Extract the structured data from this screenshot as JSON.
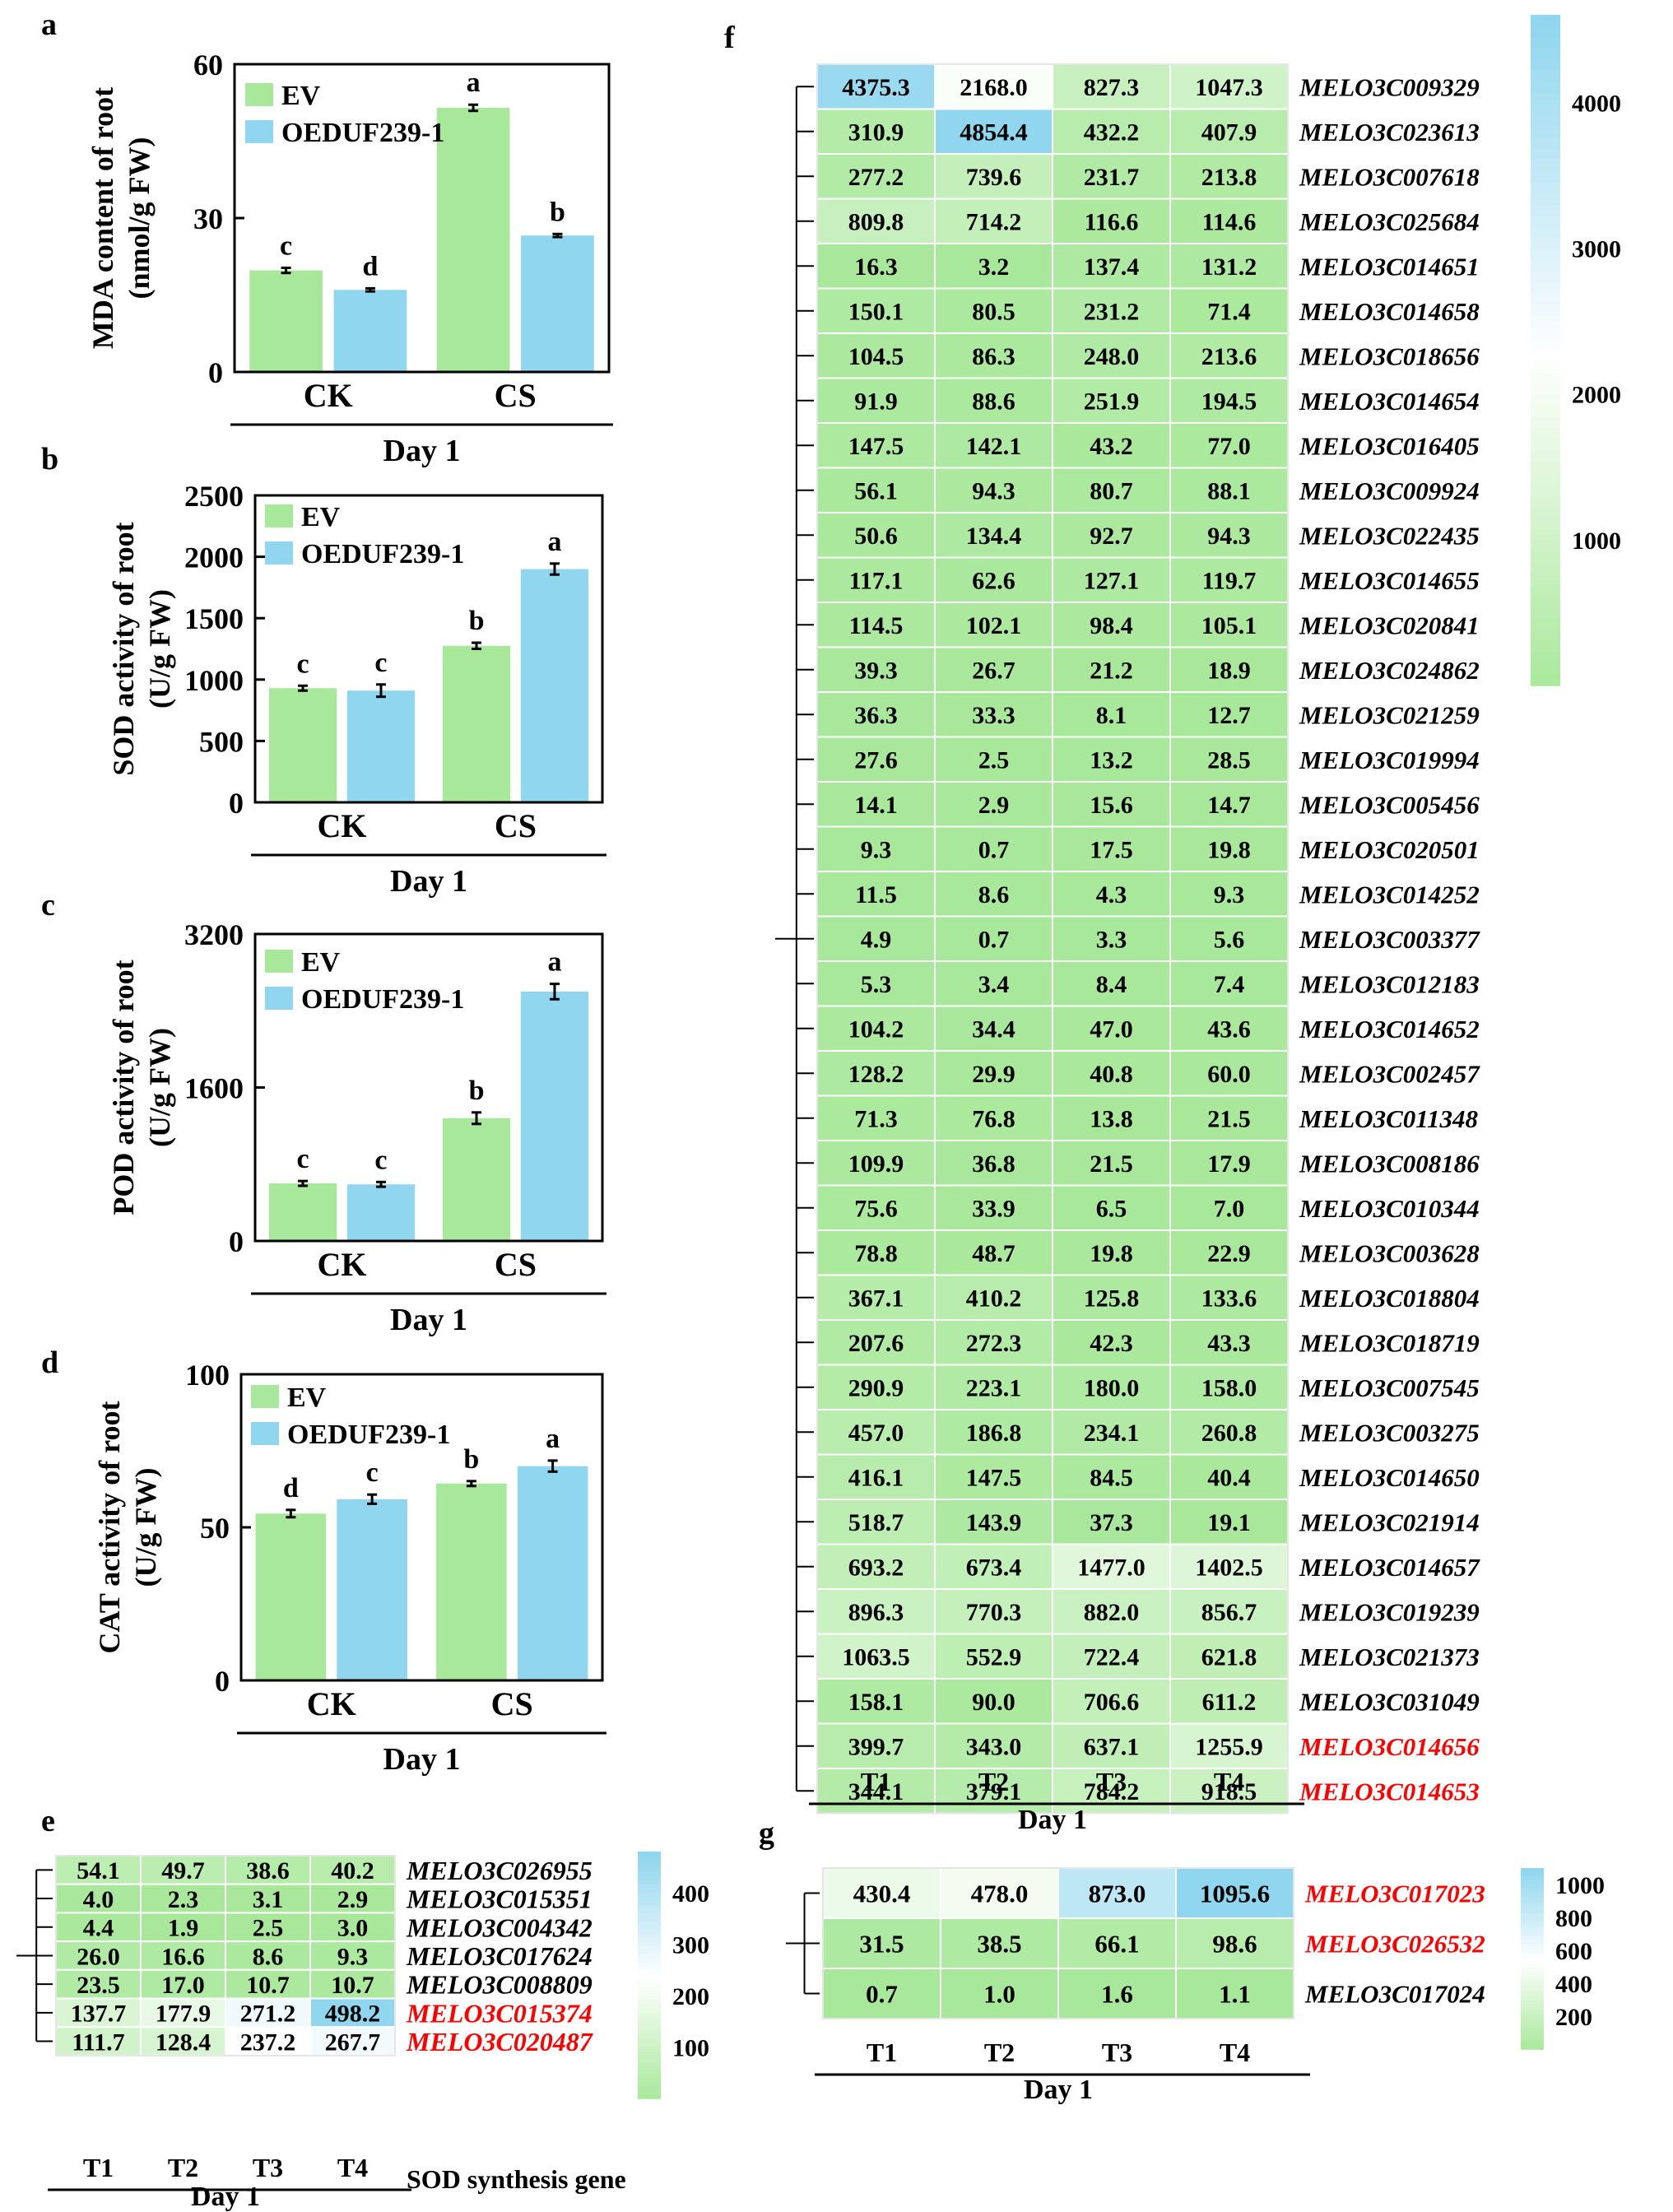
{
  "colors": {
    "ev": "#a8e89a",
    "oe": "#8fd6ee",
    "heat_low": "#a8e89a",
    "heat_mid": "#ffffff",
    "heat_high": "#8fd6ee",
    "highlight_gene": "#ff0000"
  },
  "chart_data": [
    {
      "panel": "a",
      "type": "bar",
      "categories": [
        "CK",
        "CS"
      ],
      "group_label": "Day 1",
      "ylabel_line1": "MDA content of root",
      "ylabel_line2": "(nmol/g FW)",
      "ylim": [
        0,
        60
      ],
      "yticks": [
        0,
        30,
        60
      ],
      "series": [
        {
          "name": "EV",
          "values": [
            19.8,
            51.5
          ],
          "errors": [
            0.5,
            0.6
          ],
          "letters": [
            "c",
            "a"
          ]
        },
        {
          "name": "OEDUF239-1",
          "values": [
            16.0,
            26.6
          ],
          "errors": [
            0.3,
            0.3
          ],
          "letters": [
            "d",
            "b"
          ]
        }
      ]
    },
    {
      "panel": "b",
      "type": "bar",
      "categories": [
        "CK",
        "CS"
      ],
      "group_label": "Day 1",
      "ylabel_line1": "SOD activity of root",
      "ylabel_line2": "(U/g FW)",
      "ylim": [
        0,
        2500
      ],
      "yticks": [
        0,
        500,
        1000,
        1500,
        2000,
        2500
      ],
      "series": [
        {
          "name": "EV",
          "values": [
            930,
            1275
          ],
          "errors": [
            20,
            25
          ],
          "letters": [
            "c",
            "b"
          ]
        },
        {
          "name": "OEDUF239-1",
          "values": [
            910,
            1900
          ],
          "errors": [
            50,
            45
          ],
          "letters": [
            "c",
            "a"
          ]
        }
      ]
    },
    {
      "panel": "c",
      "type": "bar",
      "categories": [
        "CK",
        "CS"
      ],
      "group_label": "Day 1",
      "ylabel_line1": "POD activity of root",
      "ylabel_line2": "(U/g FW)",
      "ylim": [
        0,
        3200
      ],
      "yticks": [
        0,
        1600,
        3200
      ],
      "series": [
        {
          "name": "EV",
          "values": [
            600,
            1280
          ],
          "errors": [
            25,
            60
          ],
          "letters": [
            "c",
            "b"
          ]
        },
        {
          "name": "OEDUF239-1",
          "values": [
            590,
            2600
          ],
          "errors": [
            25,
            80
          ],
          "letters": [
            "c",
            "a"
          ]
        }
      ]
    },
    {
      "panel": "d",
      "type": "bar",
      "categories": [
        "CK",
        "CS"
      ],
      "group_label": "Day 1",
      "ylabel_line1": "CAT activity of root",
      "ylabel_line2": "(U/g FW)",
      "ylim": [
        0,
        100
      ],
      "yticks": [
        0,
        50,
        100
      ],
      "series": [
        {
          "name": "EV",
          "values": [
            54.5,
            64.3
          ],
          "errors": [
            1.2,
            0.8
          ],
          "letters": [
            "d",
            "b"
          ]
        },
        {
          "name": "OEDUF239-1",
          "values": [
            59.2,
            70.0
          ],
          "errors": [
            1.5,
            1.8
          ],
          "letters": [
            "c",
            "a"
          ]
        }
      ]
    },
    {
      "panel": "e",
      "type": "heatmap",
      "columns": [
        "T1",
        "T2",
        "T3",
        "T4"
      ],
      "group_label": "Day 1",
      "footer_label": "SOD synthesis gene",
      "colorbar_ticks": [
        100,
        200,
        300,
        400
      ],
      "colorbar_range": [
        0,
        480
      ],
      "rows": [
        {
          "gene": "MELO3C026955",
          "values": [
            54.1,
            49.7,
            38.6,
            40.2
          ],
          "highlight": false
        },
        {
          "gene": "MELO3C015351",
          "values": [
            4.0,
            2.3,
            3.1,
            2.9
          ],
          "highlight": false
        },
        {
          "gene": "MELO3C004342",
          "values": [
            4.4,
            1.9,
            2.5,
            3.0
          ],
          "highlight": false
        },
        {
          "gene": "MELO3C017624",
          "values": [
            26.0,
            16.6,
            8.6,
            9.3
          ],
          "highlight": false
        },
        {
          "gene": "MELO3C008809",
          "values": [
            23.5,
            17.0,
            10.7,
            10.7
          ],
          "highlight": false
        },
        {
          "gene": "MELO3C015374",
          "values": [
            137.7,
            177.9,
            271.2,
            498.2
          ],
          "highlight": true
        },
        {
          "gene": "MELO3C020487",
          "values": [
            111.7,
            128.4,
            237.2,
            267.7
          ],
          "highlight": true
        }
      ]
    },
    {
      "panel": "f",
      "type": "heatmap",
      "columns": [
        "T1",
        "T2",
        "T3",
        "T4"
      ],
      "group_label": "Day 1",
      "colorbar_ticks": [
        1000,
        2000,
        3000,
        4000
      ],
      "colorbar_range": [
        0,
        4600
      ],
      "rows": [
        {
          "gene": "MELO3C009329",
          "values": [
            4375.3,
            2168.0,
            827.3,
            1047.3
          ],
          "highlight": false
        },
        {
          "gene": "MELO3C023613",
          "values": [
            310.9,
            4854.4,
            432.2,
            407.9
          ],
          "highlight": false
        },
        {
          "gene": "MELO3C007618",
          "values": [
            277.2,
            739.6,
            231.7,
            213.8
          ],
          "highlight": false
        },
        {
          "gene": "MELO3C025684",
          "values": [
            809.8,
            714.2,
            116.6,
            114.6
          ],
          "highlight": false
        },
        {
          "gene": "MELO3C014651",
          "values": [
            16.3,
            3.2,
            137.4,
            131.2
          ],
          "highlight": false
        },
        {
          "gene": "MELO3C014658",
          "values": [
            150.1,
            80.5,
            231.2,
            71.4
          ],
          "highlight": false
        },
        {
          "gene": "MELO3C018656",
          "values": [
            104.5,
            86.3,
            248.0,
            213.6
          ],
          "highlight": false
        },
        {
          "gene": "MELO3C014654",
          "values": [
            91.9,
            88.6,
            251.9,
            194.5
          ],
          "highlight": false
        },
        {
          "gene": "MELO3C016405",
          "values": [
            147.5,
            142.1,
            43.2,
            77.0
          ],
          "highlight": false
        },
        {
          "gene": "MELO3C009924",
          "values": [
            56.1,
            94.3,
            80.7,
            88.1
          ],
          "highlight": false
        },
        {
          "gene": "MELO3C022435",
          "values": [
            50.6,
            134.4,
            92.7,
            94.3
          ],
          "highlight": false
        },
        {
          "gene": "MELO3C014655",
          "values": [
            117.1,
            62.6,
            127.1,
            119.7
          ],
          "highlight": false
        },
        {
          "gene": "MELO3C020841",
          "values": [
            114.5,
            102.1,
            98.4,
            105.1
          ],
          "highlight": false
        },
        {
          "gene": "MELO3C024862",
          "values": [
            39.3,
            26.7,
            21.2,
            18.9
          ],
          "highlight": false
        },
        {
          "gene": "MELO3C021259",
          "values": [
            36.3,
            33.3,
            8.1,
            12.7
          ],
          "highlight": false
        },
        {
          "gene": "MELO3C019994",
          "values": [
            27.6,
            2.5,
            13.2,
            28.5
          ],
          "highlight": false
        },
        {
          "gene": "MELO3C005456",
          "values": [
            14.1,
            2.9,
            15.6,
            14.7
          ],
          "highlight": false
        },
        {
          "gene": "MELO3C020501",
          "values": [
            9.3,
            0.7,
            17.5,
            19.8
          ],
          "highlight": false
        },
        {
          "gene": "MELO3C014252",
          "values": [
            11.5,
            8.6,
            4.3,
            9.3
          ],
          "highlight": false
        },
        {
          "gene": "MELO3C003377",
          "values": [
            4.9,
            0.7,
            3.3,
            5.6
          ],
          "highlight": false
        },
        {
          "gene": "MELO3C012183",
          "values": [
            5.3,
            3.4,
            8.4,
            7.4
          ],
          "highlight": false
        },
        {
          "gene": "MELO3C014652",
          "values": [
            104.2,
            34.4,
            47.0,
            43.6
          ],
          "highlight": false
        },
        {
          "gene": "MELO3C002457",
          "values": [
            128.2,
            29.9,
            40.8,
            60.0
          ],
          "highlight": false
        },
        {
          "gene": "MELO3C011348",
          "values": [
            71.3,
            76.8,
            13.8,
            21.5
          ],
          "highlight": false
        },
        {
          "gene": "MELO3C008186",
          "values": [
            109.9,
            36.8,
            21.5,
            17.9
          ],
          "highlight": false
        },
        {
          "gene": "MELO3C010344",
          "values": [
            75.6,
            33.9,
            6.5,
            7.0
          ],
          "highlight": false
        },
        {
          "gene": "MELO3C003628",
          "values": [
            78.8,
            48.7,
            19.8,
            22.9
          ],
          "highlight": false
        },
        {
          "gene": "MELO3C018804",
          "values": [
            367.1,
            410.2,
            125.8,
            133.6
          ],
          "highlight": false
        },
        {
          "gene": "MELO3C018719",
          "values": [
            207.6,
            272.3,
            42.3,
            43.3
          ],
          "highlight": false
        },
        {
          "gene": "MELO3C007545",
          "values": [
            290.9,
            223.1,
            180.0,
            158.0
          ],
          "highlight": false
        },
        {
          "gene": "MELO3C003275",
          "values": [
            457.0,
            186.8,
            234.1,
            260.8
          ],
          "highlight": false
        },
        {
          "gene": "MELO3C014650",
          "values": [
            416.1,
            147.5,
            84.5,
            40.4
          ],
          "highlight": false
        },
        {
          "gene": "MELO3C021914",
          "values": [
            518.7,
            143.9,
            37.3,
            19.1
          ],
          "highlight": false
        },
        {
          "gene": "MELO3C014657",
          "values": [
            693.2,
            673.4,
            1477.0,
            1402.5
          ],
          "highlight": false
        },
        {
          "gene": "MELO3C019239",
          "values": [
            896.3,
            770.3,
            882.0,
            856.7
          ],
          "highlight": false
        },
        {
          "gene": "MELO3C021373",
          "values": [
            1063.5,
            552.9,
            722.4,
            621.8
          ],
          "highlight": false
        },
        {
          "gene": "MELO3C031049",
          "values": [
            158.1,
            90.0,
            706.6,
            611.2
          ],
          "highlight": false
        },
        {
          "gene": "MELO3C014656",
          "values": [
            399.7,
            343.0,
            637.1,
            1255.9
          ],
          "highlight": true
        },
        {
          "gene": "MELO3C014653",
          "values": [
            344.1,
            379.1,
            784.2,
            918.5
          ],
          "highlight": true
        }
      ]
    },
    {
      "panel": "g",
      "type": "heatmap",
      "columns": [
        "T1",
        "T2",
        "T3",
        "T4"
      ],
      "group_label": "Day 1",
      "colorbar_ticks": [
        200,
        400,
        600,
        800,
        1000
      ],
      "colorbar_range": [
        0,
        1100
      ],
      "rows": [
        {
          "gene": "MELO3C017023",
          "values": [
            430.4,
            478.0,
            873.0,
            1095.6
          ],
          "highlight": true
        },
        {
          "gene": "MELO3C026532",
          "values": [
            31.5,
            38.5,
            66.1,
            98.6
          ],
          "highlight": true
        },
        {
          "gene": "MELO3C017024",
          "values": [
            0.7,
            1.0,
            1.6,
            1.1
          ],
          "highlight": false
        }
      ]
    }
  ]
}
